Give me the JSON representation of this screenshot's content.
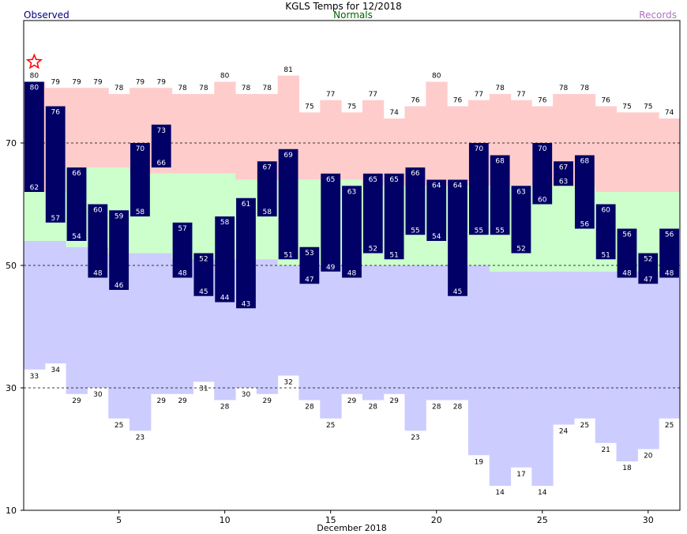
{
  "chart_data": {
    "type": "bar",
    "title": "KGLS Temps for 12/2018",
    "legend": {
      "observed": "Observed",
      "normals": "Normals",
      "records": "Records"
    },
    "xlabel": "December 2018",
    "x_ticks": [
      5,
      10,
      15,
      20,
      25,
      30
    ],
    "y_ticks": [
      10,
      30,
      50,
      70
    ],
    "ylim": [
      10,
      90
    ],
    "days": [
      1,
      2,
      3,
      4,
      5,
      6,
      7,
      8,
      9,
      10,
      11,
      12,
      13,
      14,
      15,
      16,
      17,
      18,
      19,
      20,
      21,
      22,
      23,
      24,
      25,
      26,
      27,
      28,
      29,
      30,
      31
    ],
    "series": [
      {
        "name": "Observed high",
        "values": [
          80,
          76,
          66,
          60,
          59,
          70,
          73,
          57,
          52,
          58,
          61,
          67,
          69,
          53,
          65,
          63,
          65,
          65,
          66,
          64,
          64,
          70,
          68,
          63,
          70,
          67,
          68,
          60,
          56,
          52,
          56
        ]
      },
      {
        "name": "Observed low",
        "values": [
          62,
          57,
          54,
          48,
          46,
          58,
          66,
          48,
          45,
          44,
          43,
          58,
          51,
          47,
          49,
          48,
          52,
          51,
          55,
          54,
          45,
          55,
          55,
          52,
          60,
          63,
          56,
          51,
          48,
          47,
          48
        ]
      },
      {
        "name": "Record high",
        "values": [
          80,
          79,
          79,
          79,
          78,
          79,
          79,
          78,
          78,
          80,
          78,
          78,
          81,
          75,
          77,
          75,
          77,
          74,
          76,
          80,
          76,
          77,
          78,
          77,
          76,
          78,
          78,
          76,
          75,
          75,
          74
        ]
      },
      {
        "name": "Record low",
        "values": [
          33,
          34,
          29,
          30,
          25,
          23,
          29,
          29,
          31,
          28,
          30,
          29,
          32,
          28,
          25,
          29,
          28,
          29,
          23,
          28,
          28,
          19,
          14,
          17,
          14,
          24,
          25,
          21,
          18,
          20,
          25
        ]
      },
      {
        "name": "Normal high",
        "values": [
          62,
          62,
          66,
          66,
          66,
          65,
          65,
          65,
          65,
          65,
          64,
          64,
          64,
          64,
          64,
          64,
          63,
          63,
          63,
          63,
          63,
          63,
          63,
          63,
          63,
          63,
          63,
          62,
          62,
          62,
          62
        ]
      },
      {
        "name": "Normal low",
        "values": [
          54,
          54,
          53,
          53,
          52,
          52,
          52,
          51,
          51,
          51,
          51,
          51,
          50,
          50,
          50,
          50,
          50,
          50,
          50,
          50,
          50,
          50,
          49,
          49,
          49,
          49,
          49,
          49,
          49,
          49,
          48
        ]
      }
    ],
    "annotations": [
      {
        "day": 1,
        "symbol": "star",
        "meaning": "record high"
      }
    ],
    "colors": {
      "observed": "#000066",
      "normal_band": "#ccffcc",
      "record_high_band": "#ffcccc",
      "record_low_band": "#ccccff",
      "observed_text": "#000080",
      "normals_text": "#006400",
      "records_text": "#b070c0",
      "star": "#ff0000"
    }
  }
}
